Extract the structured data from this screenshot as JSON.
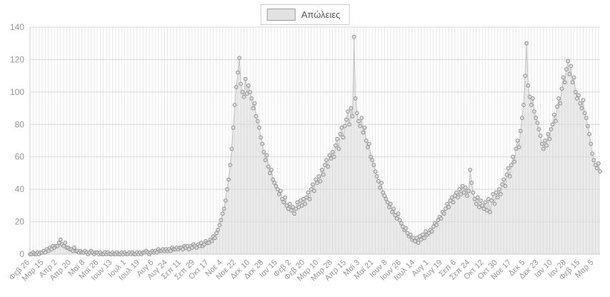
{
  "legend": {
    "label": "Απώλειες"
  },
  "colors": {
    "grid_v": "#e8e8e8",
    "grid_h": "#d9d9d9",
    "axis_line": "#cccccc",
    "axis_text": "#949494",
    "area_fill": "rgba(190,190,190,0.30)",
    "series_line": "#c2c2c2",
    "dot_fill": "#dddddd",
    "dot_stroke": "#8f8f8f"
  },
  "chart_data": {
    "type": "scatter",
    "title": "",
    "series_name": "Απώλειες",
    "xlabel": "",
    "ylabel": "",
    "ylim": [
      0,
      140
    ],
    "yticks": [
      0,
      20,
      40,
      60,
      80,
      100,
      120,
      140
    ],
    "grid": true,
    "legend_position": "top-center",
    "x_tick_labels": [
      "Φεβ 26",
      "Μαρ 15",
      "Απρ 2",
      "Απρ 20",
      "Μαϊ 8",
      "Μαϊ 26",
      "Ιουν 13",
      "Ιουλ 1",
      "Ιουλ 19",
      "Αυγ 6",
      "Αυγ 24",
      "Σεπ 11",
      "Σεπ 29",
      "Οκτ 17",
      "Νοε 4",
      "Νοε 22",
      "Δεκ 10",
      "Δεκ 28",
      "Ιαν 15",
      "Φεβ 2",
      "Φεβ 20",
      "Μαρ 10",
      "Μαρ 28",
      "Απρ 15",
      "Μαϊ 3",
      "Μαϊ 21",
      "Ιουν 8",
      "Ιουν 26",
      "Ιουλ 14",
      "Αυγ 1",
      "Αυγ 19",
      "Σεπ 6",
      "Σεπ 24",
      "Οκτ 12",
      "Οκτ 30",
      "Νοε 17",
      "Δεκ 5",
      "Δεκ 23",
      "Ιαν 10",
      "Ιαν 28",
      "Φεβ 15",
      "Μαρ 5"
    ],
    "points_per_tick": 9,
    "values": [
      0,
      0,
      1,
      0,
      0,
      1,
      0,
      1,
      1,
      2,
      1,
      3,
      2,
      4,
      3,
      5,
      4,
      5,
      5,
      7,
      9,
      6,
      5,
      7,
      4,
      4,
      3,
      3,
      2,
      4,
      2,
      2,
      1,
      2,
      1,
      1,
      2,
      1,
      0,
      1,
      2,
      1,
      0,
      1,
      1,
      0,
      1,
      0,
      0,
      1,
      0,
      1,
      0,
      0,
      1,
      0,
      0,
      1,
      0,
      0,
      1,
      0,
      1,
      0,
      0,
      1,
      0,
      1,
      0,
      0,
      1,
      0,
      1,
      0,
      1,
      1,
      2,
      1,
      0,
      1,
      2,
      1,
      2,
      1,
      3,
      2,
      2,
      3,
      2,
      3,
      2,
      3,
      2,
      4,
      3,
      3,
      4,
      3,
      4,
      4,
      3,
      5,
      4,
      5,
      3,
      5,
      4,
      6,
      5,
      4,
      6,
      5,
      7,
      5,
      6,
      8,
      7,
      7,
      9,
      8,
      11,
      10,
      13,
      15,
      18,
      21,
      25,
      28,
      33,
      40,
      46,
      55,
      65,
      78,
      92,
      103,
      112,
      121,
      105,
      100,
      97,
      108,
      99,
      104,
      100,
      96,
      90,
      93,
      85,
      82,
      78,
      72,
      68,
      63,
      58,
      61,
      54,
      50,
      52,
      46,
      44,
      42,
      40,
      37,
      39,
      34,
      32,
      35,
      30,
      28,
      31,
      27,
      29,
      25,
      28,
      32,
      29,
      33,
      30,
      34,
      31,
      35,
      38,
      34,
      40,
      43,
      39,
      46,
      44,
      48,
      45,
      52,
      49,
      55,
      58,
      54,
      61,
      59,
      63,
      60,
      67,
      71,
      65,
      74,
      78,
      72,
      79,
      83,
      88,
      80,
      90,
      85,
      134,
      96,
      87,
      82,
      79,
      84,
      75,
      78,
      70,
      66,
      68,
      60,
      58,
      55,
      51,
      48,
      45,
      41,
      44,
      38,
      36,
      34,
      32,
      29,
      31,
      26,
      28,
      24,
      22,
      25,
      21,
      19,
      17,
      15,
      16,
      13,
      11,
      12,
      9,
      10,
      8,
      10,
      7,
      11,
      9,
      12,
      10,
      14,
      12,
      13,
      15,
      14,
      17,
      19,
      18,
      21,
      23,
      22,
      26,
      25,
      28,
      31,
      29,
      33,
      35,
      32,
      36,
      38,
      35,
      40,
      37,
      42,
      38,
      41,
      36,
      39,
      52,
      44,
      38,
      34,
      31,
      35,
      29,
      33,
      30,
      28,
      32,
      27,
      34,
      26,
      33,
      37,
      31,
      38,
      35,
      40,
      37,
      43,
      46,
      42,
      49,
      53,
      48,
      55,
      60,
      57,
      65,
      70,
      66,
      76,
      84,
      92,
      110,
      130,
      104,
      97,
      92,
      96,
      88,
      84,
      81,
      77,
      73,
      68,
      65,
      70,
      67,
      74,
      71,
      77,
      80,
      86,
      82,
      91,
      96,
      93,
      102,
      109,
      106,
      114,
      119,
      111,
      116,
      106,
      109,
      100,
      96,
      98,
      93,
      90,
      95,
      87,
      84,
      79,
      74,
      68,
      62,
      58,
      55,
      53,
      56,
      51
    ]
  }
}
